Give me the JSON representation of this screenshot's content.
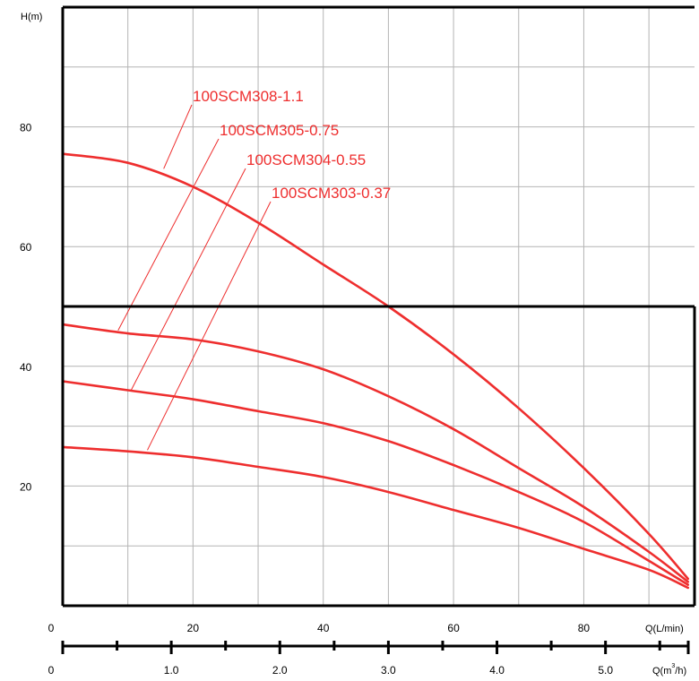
{
  "chart_data": {
    "type": "line",
    "title": "",
    "ylabel": "H(m)",
    "xlabel": "Q(L/min)",
    "xlabel_secondary": "Q(m³/h)",
    "xlabel_secondary_parts": {
      "prefix": "Q(m",
      "sup": "3",
      "suffix": "/h)"
    },
    "xlim": [
      0,
      97
    ],
    "ylim": [
      0,
      100
    ],
    "grid": true,
    "legend": "labels on curves",
    "colors": {
      "curve": "#ee2e2e",
      "grid": "#b4b4b4",
      "axis": "#000000"
    },
    "y_ticks": [
      {
        "value": 20,
        "label": "20"
      },
      {
        "value": 40,
        "label": "40"
      },
      {
        "value": 60,
        "label": "60"
      },
      {
        "value": 80,
        "label": "80"
      }
    ],
    "x_ticks": [
      {
        "value": 0,
        "label": "0"
      },
      {
        "value": 20,
        "label": "20"
      },
      {
        "value": 40,
        "label": "40"
      },
      {
        "value": 60,
        "label": "60"
      },
      {
        "value": 80,
        "label": "80"
      }
    ],
    "x2_ticks": [
      {
        "value": 0,
        "label": "0"
      },
      {
        "value": 1.0,
        "label": "1.0"
      },
      {
        "value": 2.0,
        "label": "2.0"
      },
      {
        "value": 3.0,
        "label": "3.0"
      },
      {
        "value": 4.0,
        "label": "4.0"
      },
      {
        "value": 5.0,
        "label": "5.0"
      }
    ],
    "series": [
      {
        "name": "100SCM308-1.1",
        "x": [
          0,
          10,
          20,
          30,
          40,
          50,
          60,
          70,
          80,
          90,
          96
        ],
        "y": [
          75.5,
          74,
          70,
          64,
          57,
          50,
          42,
          33,
          23,
          12,
          4.5
        ],
        "label_anchor": {
          "x": 15.5,
          "y": 73
        }
      },
      {
        "name": "100SCM305-0.75",
        "x": [
          0,
          10,
          20,
          30,
          40,
          50,
          60,
          70,
          80,
          90,
          96
        ],
        "y": [
          47,
          45.5,
          44.5,
          42.5,
          39.5,
          35,
          29.5,
          23,
          16.5,
          9,
          4
        ],
        "label_anchor": {
          "x": 8.5,
          "y": 46
        }
      },
      {
        "name": "100SCM304-0.55",
        "x": [
          0,
          10,
          20,
          30,
          40,
          50,
          60,
          70,
          80,
          90,
          96
        ],
        "y": [
          37.5,
          36,
          34.5,
          32.5,
          30.5,
          27.5,
          23.5,
          19,
          14,
          7.5,
          3.5
        ],
        "label_anchor": {
          "x": 10.5,
          "y": 36
        }
      },
      {
        "name": "100SCM303-0.37",
        "x": [
          0,
          10,
          20,
          30,
          40,
          50,
          60,
          70,
          80,
          90,
          96
        ],
        "y": [
          26.5,
          25.8,
          24.8,
          23.2,
          21.5,
          19,
          16,
          13,
          9.5,
          6,
          3
        ],
        "label_anchor": {
          "x": 13,
          "y": 26
        }
      }
    ]
  }
}
